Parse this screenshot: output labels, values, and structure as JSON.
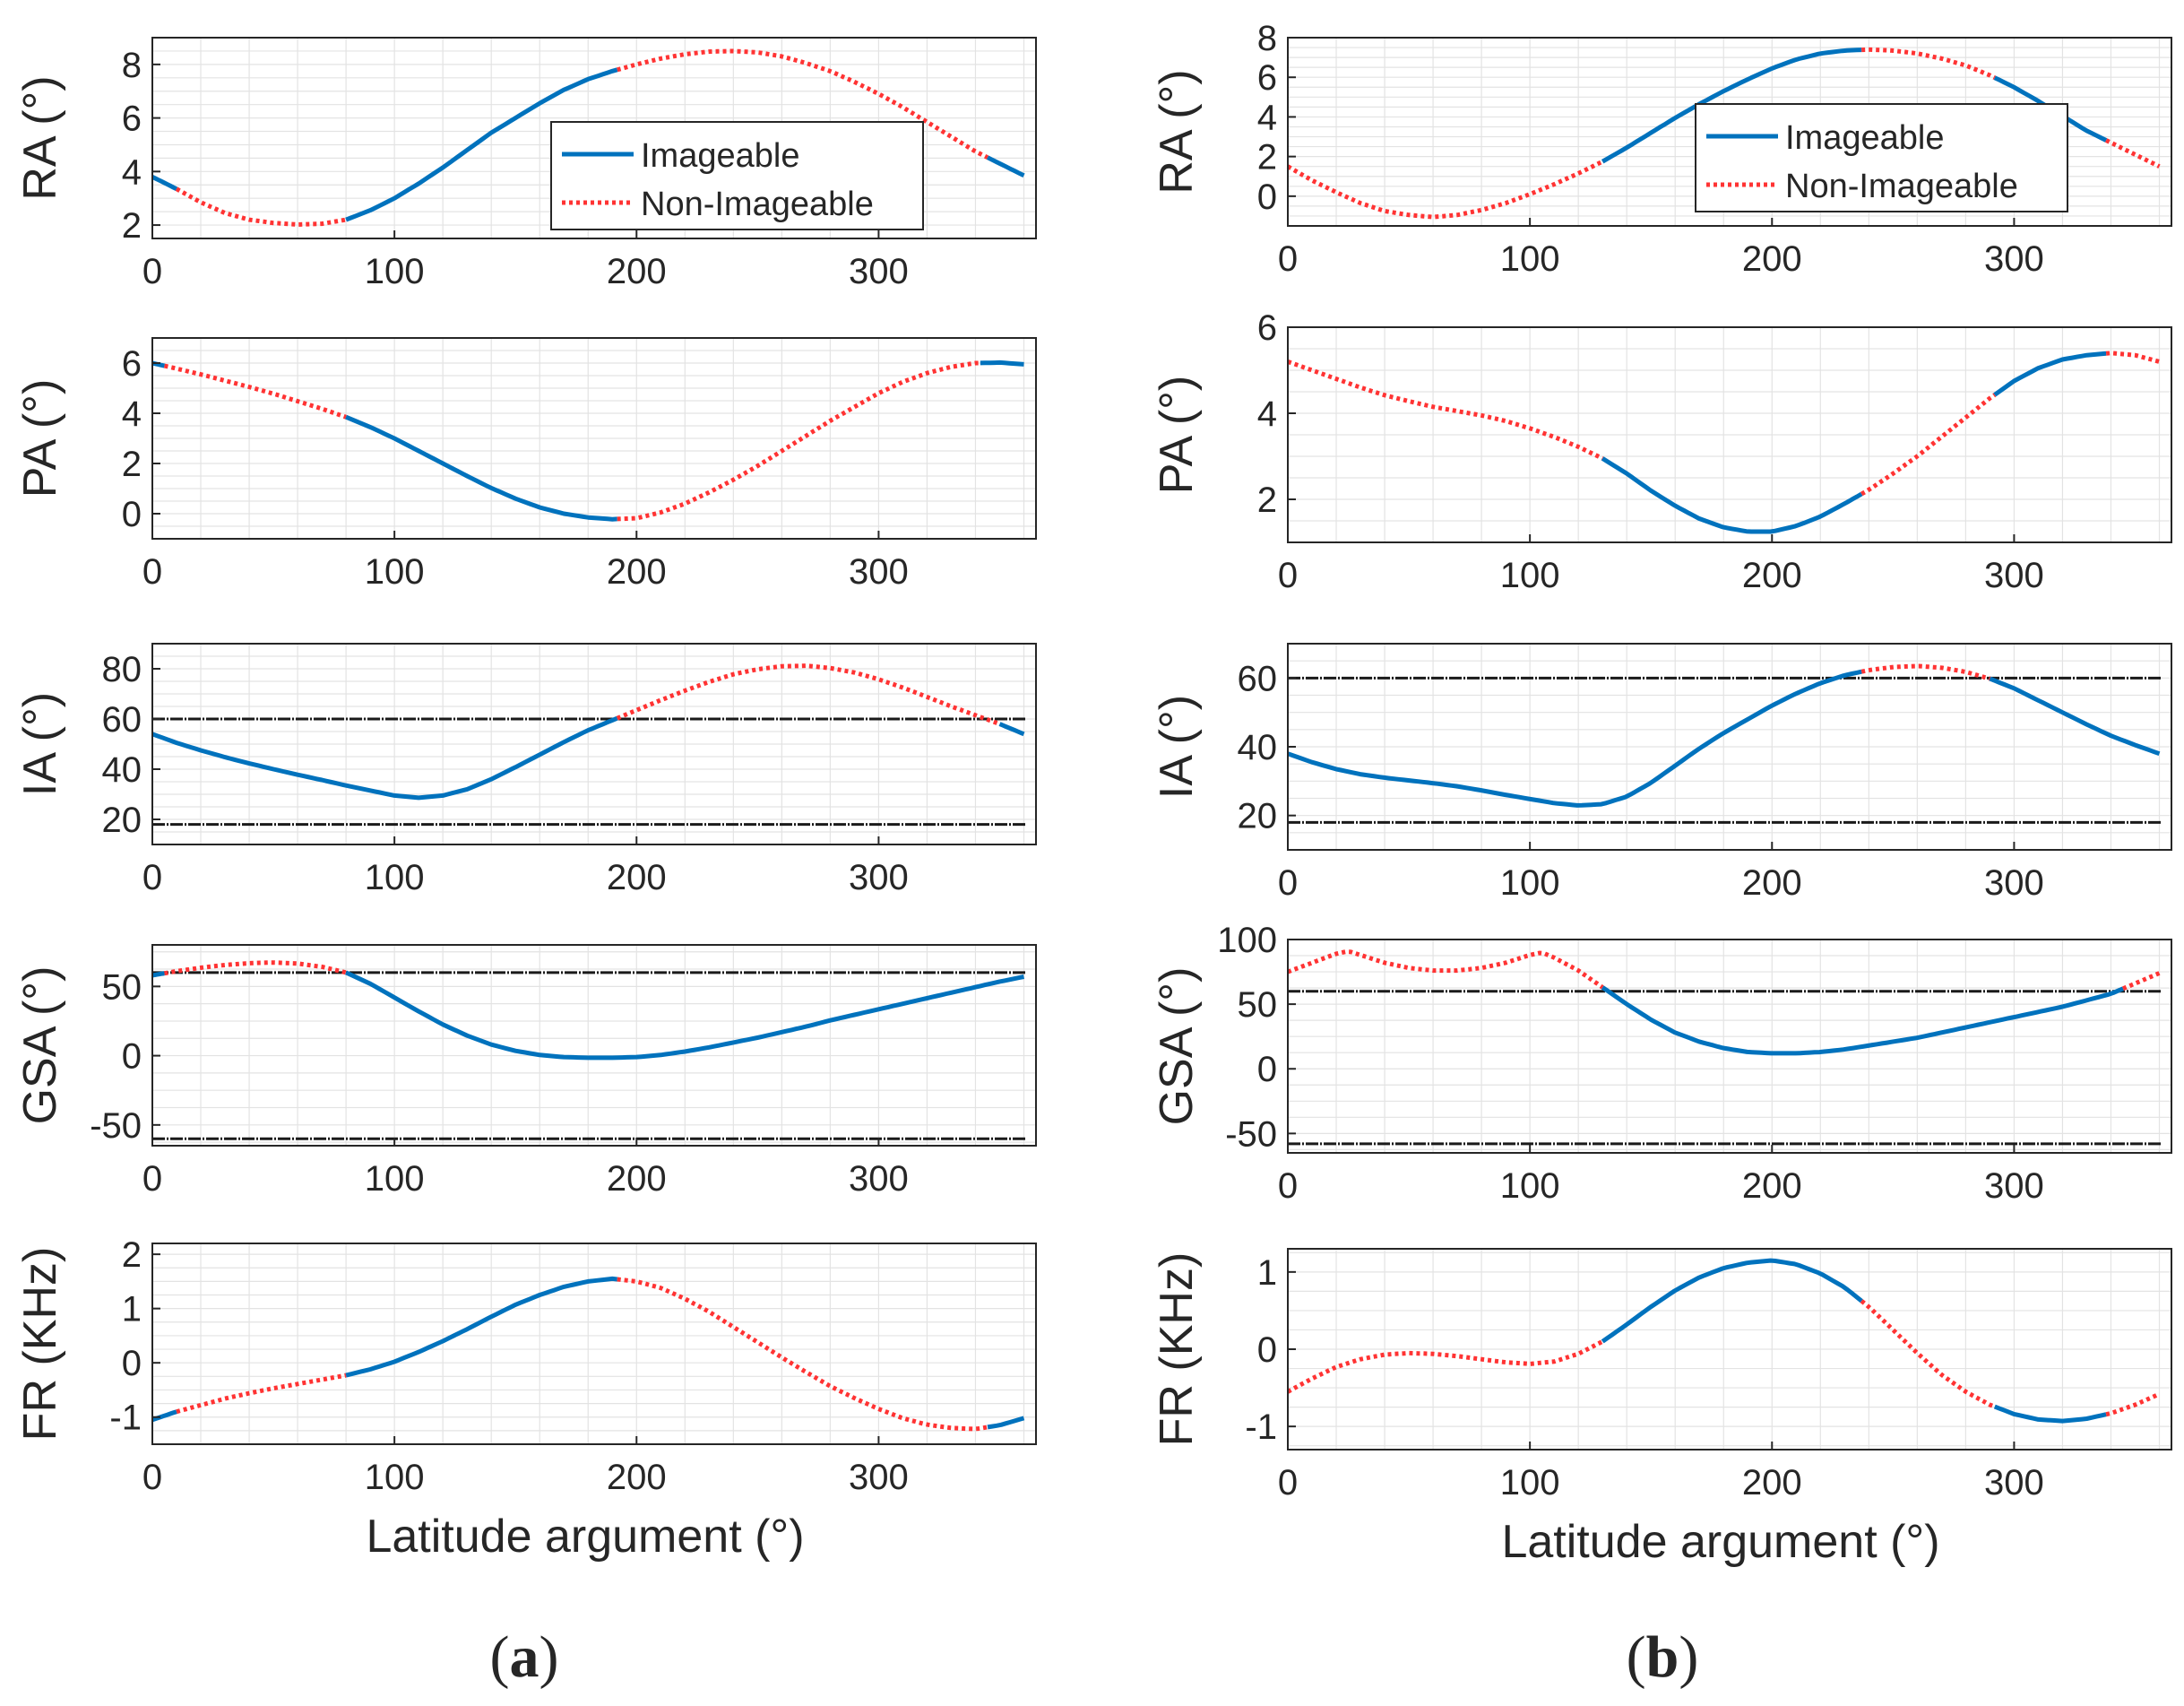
{
  "colors": {
    "imageable": "#0072BD",
    "non_imageable": "#FF3333",
    "threshold": "#1a1a1a",
    "grid": "#e3e3e3",
    "axis": "#262626"
  },
  "legend": {
    "imageable": "Imageable",
    "non_imageable": "Non-Imageable"
  },
  "xlabel": "Latitude argument (°)",
  "chart_data": [
    {
      "type": "line",
      "panel": "a",
      "id": "a-RA",
      "title": "",
      "xlabel": "",
      "ylabel": "RA (°)",
      "xlim": [
        0,
        365
      ],
      "ylim": [
        1.5,
        9
      ],
      "xticks": [
        0,
        100,
        200,
        300
      ],
      "yticks": [
        2,
        4,
        6,
        8
      ],
      "grid": true,
      "legend": "center-right",
      "x": [
        0,
        10,
        20,
        30,
        40,
        50,
        60,
        70,
        80,
        90,
        100,
        110,
        120,
        130,
        140,
        150,
        160,
        170,
        180,
        190,
        200,
        210,
        220,
        230,
        240,
        250,
        260,
        270,
        280,
        290,
        300,
        310,
        320,
        330,
        340,
        350,
        360
      ],
      "series": [
        {
          "name": "RA",
          "values": [
            3.8,
            3.35,
            2.85,
            2.45,
            2.2,
            2.08,
            2.02,
            2.05,
            2.2,
            2.55,
            3.0,
            3.55,
            4.15,
            4.8,
            5.45,
            6.0,
            6.55,
            7.05,
            7.45,
            7.75,
            8.0,
            8.22,
            8.38,
            8.48,
            8.5,
            8.45,
            8.3,
            8.05,
            7.75,
            7.35,
            6.9,
            6.4,
            5.85,
            5.3,
            4.75,
            4.3,
            3.85
          ]
        }
      ],
      "imageable": [
        [
          0,
          10
        ],
        [
          80,
          192
        ],
        [
          345,
          365
        ]
      ],
      "thresholds": []
    },
    {
      "type": "line",
      "panel": "a",
      "id": "a-PA",
      "title": "",
      "xlabel": "",
      "ylabel": "PA (°)",
      "xlim": [
        0,
        365
      ],
      "ylim": [
        -1,
        7
      ],
      "xticks": [
        0,
        100,
        200,
        300
      ],
      "yticks": [
        0,
        2,
        4,
        6
      ],
      "grid": true,
      "legend": "none",
      "x": [
        0,
        10,
        20,
        30,
        40,
        50,
        60,
        70,
        80,
        90,
        100,
        110,
        120,
        130,
        140,
        150,
        160,
        170,
        180,
        190,
        200,
        210,
        220,
        230,
        240,
        250,
        260,
        270,
        280,
        290,
        300,
        310,
        320,
        330,
        340,
        350,
        360
      ],
      "series": [
        {
          "name": "PA",
          "values": [
            6.0,
            5.78,
            5.55,
            5.3,
            5.05,
            4.78,
            4.48,
            4.18,
            3.85,
            3.45,
            3.0,
            2.5,
            2.0,
            1.5,
            1.02,
            0.6,
            0.25,
            0.0,
            -0.15,
            -0.22,
            -0.18,
            0.05,
            0.4,
            0.85,
            1.35,
            1.9,
            2.5,
            3.1,
            3.7,
            4.25,
            4.8,
            5.25,
            5.6,
            5.85,
            6.0,
            6.02,
            5.95
          ]
        }
      ],
      "imageable": [
        [
          0,
          5
        ],
        [
          80,
          192
        ],
        [
          342,
          365
        ]
      ],
      "thresholds": []
    },
    {
      "type": "line",
      "panel": "a",
      "id": "a-IA",
      "title": "",
      "xlabel": "",
      "ylabel": "IA (°)",
      "xlim": [
        0,
        365
      ],
      "ylim": [
        10,
        90
      ],
      "xticks": [
        0,
        100,
        200,
        300
      ],
      "yticks": [
        20,
        40,
        60,
        80
      ],
      "grid": true,
      "legend": "none",
      "x": [
        0,
        10,
        20,
        30,
        40,
        50,
        60,
        70,
        80,
        90,
        100,
        110,
        120,
        130,
        140,
        150,
        160,
        170,
        180,
        190,
        200,
        210,
        220,
        230,
        240,
        250,
        260,
        270,
        280,
        290,
        300,
        310,
        320,
        330,
        340,
        350,
        360
      ],
      "series": [
        {
          "name": "IA",
          "values": [
            54,
            50.5,
            47.5,
            44.8,
            42.3,
            40.0,
            37.8,
            35.7,
            33.5,
            31.5,
            29.5,
            28.6,
            29.5,
            32.0,
            36.0,
            40.8,
            45.8,
            50.8,
            55.5,
            59.5,
            63.5,
            67.5,
            71.3,
            74.8,
            77.8,
            79.8,
            81.0,
            81.2,
            80.3,
            78.5,
            75.8,
            72.5,
            68.8,
            65.0,
            61.5,
            58.0,
            54.0
          ]
        }
      ],
      "imageable": [
        [
          0,
          192
        ],
        [
          350,
          365
        ]
      ],
      "thresholds": [
        60,
        18
      ]
    },
    {
      "type": "line",
      "panel": "a",
      "id": "a-GSA",
      "title": "",
      "xlabel": "",
      "ylabel": "GSA (°)",
      "xlim": [
        0,
        365
      ],
      "ylim": [
        -65,
        80
      ],
      "xticks": [
        0,
        100,
        200,
        300
      ],
      "yticks": [
        -50,
        0,
        50
      ],
      "grid": true,
      "legend": "none",
      "x": [
        0,
        10,
        20,
        30,
        40,
        50,
        60,
        70,
        80,
        90,
        100,
        110,
        120,
        130,
        140,
        150,
        160,
        170,
        180,
        190,
        200,
        210,
        220,
        230,
        240,
        250,
        260,
        270,
        280,
        290,
        300,
        310,
        320,
        330,
        340,
        350,
        360
      ],
      "series": [
        {
          "name": "GSA",
          "values": [
            58,
            61,
            63.5,
            65.5,
            66.8,
            67.3,
            66.5,
            64.2,
            60.0,
            52.0,
            42.0,
            32.0,
            22.5,
            14.5,
            8.0,
            3.5,
            0.5,
            -1.0,
            -1.5,
            -1.5,
            -1.0,
            0.5,
            3.0,
            6.0,
            9.5,
            13.0,
            17.0,
            21.0,
            25.5,
            29.5,
            33.5,
            37.5,
            41.5,
            45.5,
            49.5,
            53.5,
            57.0
          ]
        }
      ],
      "imageable": [
        [
          0,
          5
        ],
        [
          80,
          365
        ]
      ],
      "thresholds": [
        60,
        -60
      ]
    },
    {
      "type": "line",
      "panel": "a",
      "id": "a-FR",
      "title": "",
      "xlabel": "Latitude argument (°)",
      "ylabel": "FR (KHz)",
      "xlim": [
        0,
        365
      ],
      "ylim": [
        -1.5,
        2.2
      ],
      "xticks": [
        0,
        100,
        200,
        300
      ],
      "yticks": [
        -1,
        0,
        1,
        2
      ],
      "grid": true,
      "legend": "none",
      "x": [
        0,
        10,
        20,
        30,
        40,
        50,
        60,
        70,
        80,
        90,
        100,
        110,
        120,
        130,
        140,
        150,
        160,
        170,
        180,
        190,
        200,
        210,
        220,
        230,
        240,
        250,
        260,
        270,
        280,
        290,
        300,
        310,
        320,
        330,
        340,
        350,
        360
      ],
      "series": [
        {
          "name": "FR",
          "values": [
            -1.05,
            -0.9,
            -0.78,
            -0.66,
            -0.56,
            -0.47,
            -0.39,
            -0.31,
            -0.23,
            -0.12,
            0.02,
            0.2,
            0.4,
            0.62,
            0.85,
            1.07,
            1.25,
            1.4,
            1.5,
            1.55,
            1.5,
            1.38,
            1.18,
            0.94,
            0.66,
            0.38,
            0.1,
            -0.17,
            -0.43,
            -0.65,
            -0.85,
            -1.02,
            -1.14,
            -1.2,
            -1.22,
            -1.15,
            -1.02
          ]
        }
      ],
      "imageable": [
        [
          0,
          10
        ],
        [
          80,
          192
        ],
        [
          345,
          365
        ]
      ],
      "thresholds": []
    },
    {
      "type": "line",
      "panel": "b",
      "id": "b-RA",
      "title": "",
      "xlabel": "",
      "ylabel": "RA (°)",
      "xlim": [
        0,
        365
      ],
      "ylim": [
        -1.5,
        8
      ],
      "xticks": [
        0,
        100,
        200,
        300
      ],
      "yticks": [
        0,
        2,
        4,
        6,
        8
      ],
      "grid": true,
      "legend": "center-right",
      "x": [
        0,
        10,
        20,
        30,
        40,
        50,
        60,
        70,
        80,
        90,
        100,
        110,
        120,
        130,
        140,
        150,
        160,
        170,
        180,
        190,
        200,
        210,
        220,
        230,
        240,
        250,
        260,
        270,
        280,
        290,
        300,
        310,
        320,
        330,
        340,
        350,
        360
      ],
      "series": [
        {
          "name": "RA",
          "values": [
            1.5,
            0.8,
            0.2,
            -0.35,
            -0.75,
            -0.95,
            -1.05,
            -0.95,
            -0.7,
            -0.35,
            0.1,
            0.6,
            1.15,
            1.75,
            2.45,
            3.2,
            3.95,
            4.65,
            5.3,
            5.9,
            6.45,
            6.9,
            7.2,
            7.35,
            7.4,
            7.35,
            7.2,
            6.95,
            6.6,
            6.1,
            5.5,
            4.8,
            4.05,
            3.3,
            2.7,
            2.1,
            1.5
          ]
        }
      ],
      "imageable": [
        [
          130,
          237
        ],
        [
          292,
          338
        ]
      ],
      "thresholds": []
    },
    {
      "type": "line",
      "panel": "b",
      "id": "b-PA",
      "title": "",
      "xlabel": "",
      "ylabel": "PA (°)",
      "xlim": [
        0,
        365
      ],
      "ylim": [
        1,
        6
      ],
      "xticks": [
        0,
        100,
        200,
        300
      ],
      "yticks": [
        2,
        4,
        6
      ],
      "grid": true,
      "legend": "none",
      "x": [
        0,
        10,
        20,
        30,
        40,
        50,
        60,
        70,
        80,
        90,
        100,
        110,
        120,
        130,
        140,
        150,
        160,
        170,
        180,
        190,
        200,
        210,
        220,
        230,
        240,
        250,
        260,
        270,
        280,
        290,
        300,
        310,
        320,
        330,
        340,
        350,
        360
      ],
      "series": [
        {
          "name": "PA",
          "values": [
            5.2,
            5.0,
            4.8,
            4.6,
            4.42,
            4.28,
            4.15,
            4.05,
            3.95,
            3.82,
            3.65,
            3.45,
            3.22,
            2.95,
            2.6,
            2.2,
            1.85,
            1.55,
            1.35,
            1.25,
            1.25,
            1.38,
            1.6,
            1.9,
            2.22,
            2.6,
            3.0,
            3.45,
            3.9,
            4.35,
            4.75,
            5.05,
            5.25,
            5.35,
            5.4,
            5.35,
            5.2
          ]
        }
      ],
      "imageable": [
        [
          130,
          237
        ],
        [
          292,
          338
        ]
      ],
      "thresholds": []
    },
    {
      "type": "line",
      "panel": "b",
      "id": "b-IA",
      "title": "",
      "xlabel": "",
      "ylabel": "IA (°)",
      "xlim": [
        0,
        365
      ],
      "ylim": [
        10,
        70
      ],
      "xticks": [
        0,
        100,
        200,
        300
      ],
      "yticks": [
        20,
        40,
        60
      ],
      "grid": true,
      "legend": "none",
      "x": [
        0,
        10,
        20,
        30,
        40,
        50,
        60,
        70,
        80,
        90,
        100,
        110,
        120,
        130,
        140,
        150,
        160,
        170,
        180,
        190,
        200,
        210,
        220,
        230,
        240,
        250,
        260,
        270,
        280,
        290,
        300,
        310,
        320,
        330,
        340,
        350,
        360
      ],
      "series": [
        {
          "name": "IA",
          "values": [
            38,
            35.5,
            33.5,
            32.0,
            31.0,
            30.2,
            29.4,
            28.5,
            27.3,
            26.0,
            24.8,
            23.6,
            22.9,
            23.3,
            25.5,
            29.5,
            34.5,
            39.5,
            44.0,
            48.0,
            52.0,
            55.5,
            58.5,
            60.8,
            62.3,
            63.2,
            63.5,
            63.0,
            61.8,
            59.8,
            57.0,
            53.5,
            50.0,
            46.5,
            43.2,
            40.5,
            38.0
          ]
        }
      ],
      "imageable": [
        [
          0,
          237
        ],
        [
          290,
          365
        ]
      ],
      "thresholds": [
        60,
        18
      ]
    },
    {
      "type": "line",
      "panel": "b",
      "id": "b-GSA",
      "title": "",
      "xlabel": "",
      "ylabel": "GSA (°)",
      "xlim": [
        0,
        365
      ],
      "ylim": [
        -65,
        100
      ],
      "xticks": [
        0,
        100,
        200,
        300
      ],
      "yticks": [
        -50,
        0,
        50,
        100
      ],
      "grid": true,
      "legend": "none",
      "x": [
        0,
        10,
        20,
        25,
        30,
        40,
        50,
        60,
        70,
        80,
        90,
        100,
        105,
        110,
        120,
        130,
        140,
        150,
        160,
        170,
        180,
        190,
        200,
        210,
        220,
        230,
        240,
        250,
        260,
        270,
        280,
        290,
        300,
        310,
        320,
        330,
        340,
        350,
        360
      ],
      "series": [
        {
          "name": "GSA",
          "values": [
            75,
            82,
            89,
            91,
            88,
            82,
            78,
            76,
            76,
            78,
            82,
            88,
            90,
            86,
            76,
            63,
            50,
            38,
            28,
            21,
            16,
            13,
            12,
            12,
            13,
            15,
            18,
            21,
            24,
            28,
            32,
            36,
            40,
            44,
            48,
            53,
            58,
            66,
            74
          ]
        }
      ],
      "imageable": [
        [
          130,
          345
        ]
      ],
      "thresholds": [
        60,
        -58
      ]
    },
    {
      "type": "line",
      "panel": "b",
      "id": "b-FR",
      "title": "",
      "xlabel": "Latitude argument (°)",
      "ylabel": "FR (KHz)",
      "xlim": [
        0,
        365
      ],
      "ylim": [
        -1.3,
        1.3
      ],
      "xticks": [
        0,
        100,
        200,
        300
      ],
      "yticks": [
        -1,
        0,
        1
      ],
      "grid": true,
      "legend": "none",
      "x": [
        0,
        10,
        20,
        30,
        40,
        50,
        60,
        70,
        80,
        90,
        100,
        110,
        120,
        130,
        140,
        150,
        160,
        170,
        180,
        190,
        200,
        210,
        220,
        230,
        240,
        250,
        260,
        270,
        280,
        290,
        300,
        310,
        320,
        330,
        340,
        350,
        360
      ],
      "series": [
        {
          "name": "FR",
          "values": [
            -0.55,
            -0.38,
            -0.23,
            -0.13,
            -0.07,
            -0.05,
            -0.06,
            -0.09,
            -0.13,
            -0.17,
            -0.19,
            -0.16,
            -0.06,
            0.1,
            0.32,
            0.55,
            0.76,
            0.93,
            1.05,
            1.12,
            1.15,
            1.1,
            0.98,
            0.8,
            0.55,
            0.25,
            -0.05,
            -0.33,
            -0.55,
            -0.72,
            -0.84,
            -0.91,
            -0.93,
            -0.9,
            -0.83,
            -0.72,
            -0.58
          ]
        }
      ],
      "imageable": [
        [
          130,
          237
        ],
        [
          292,
          338
        ]
      ],
      "thresholds": []
    }
  ],
  "captions": [
    {
      "open": "(",
      "letter": "a",
      "close": ")"
    },
    {
      "open": "(",
      "letter": "b",
      "close": ")"
    }
  ]
}
